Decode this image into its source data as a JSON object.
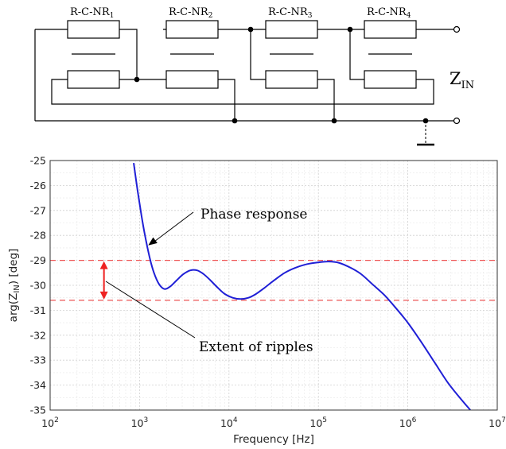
{
  "circuit": {
    "block_labels": [
      {
        "base": "R-C-NR",
        "sub": "1"
      },
      {
        "base": "R-C-NR",
        "sub": "2"
      },
      {
        "base": "R-C-NR",
        "sub": "3"
      },
      {
        "base": "R-C-NR",
        "sub": "4"
      }
    ],
    "port_label": {
      "base": "Z",
      "sub": "IN"
    }
  },
  "chart_data": {
    "type": "line",
    "xscale": "log",
    "xlim": [
      100,
      10000000
    ],
    "ylim": [
      -35,
      -25
    ],
    "xlabel": "Frequency [Hz]",
    "ylabel": {
      "base": "arg(Z",
      "sub": "IN",
      "tail": ") [deg]"
    },
    "x_ticks": [
      {
        "value": 100,
        "base": "10",
        "exp": "2"
      },
      {
        "value": 1000,
        "base": "10",
        "exp": "3"
      },
      {
        "value": 10000,
        "base": "10",
        "exp": "4"
      },
      {
        "value": 100000,
        "base": "10",
        "exp": "5"
      },
      {
        "value": 1000000,
        "base": "10",
        "exp": "6"
      },
      {
        "value": 10000000,
        "base": "10",
        "exp": "7"
      }
    ],
    "y_ticks": [
      "-25",
      "-26",
      "-27",
      "-28",
      "-29",
      "-30",
      "-31",
      "-32",
      "-33",
      "-34",
      "-35"
    ],
    "grid": true,
    "series": [
      {
        "color": "#1f1fd6",
        "x": [
          860,
          950,
          1050,
          1150,
          1300,
          1450,
          1650,
          1900,
          2200,
          2600,
          3100,
          3700,
          4400,
          5200,
          6200,
          7500,
          9000,
          11000,
          13500,
          16500,
          20000,
          25000,
          32000,
          42000,
          55000,
          75000,
          100000,
          130000,
          170000,
          230000,
          300000,
          400000,
          550000,
          750000,
          1000000,
          1400000,
          2000000,
          2800000,
          3800000,
          5000000
        ],
        "y": [
          -25.1,
          -26.2,
          -27.2,
          -28.0,
          -28.9,
          -29.5,
          -29.95,
          -30.15,
          -30.05,
          -29.8,
          -29.55,
          -29.4,
          -29.4,
          -29.55,
          -29.8,
          -30.1,
          -30.35,
          -30.5,
          -30.55,
          -30.5,
          -30.35,
          -30.1,
          -29.8,
          -29.5,
          -29.3,
          -29.15,
          -29.08,
          -29.05,
          -29.1,
          -29.3,
          -29.55,
          -29.95,
          -30.4,
          -30.95,
          -31.5,
          -32.25,
          -33.1,
          -33.9,
          -34.5,
          -35.0
        ]
      }
    ],
    "reference_lines": [
      {
        "y": -29.0,
        "color": "#ee5555"
      },
      {
        "y": -30.6,
        "color": "#ee5555"
      }
    ],
    "ripple_marker": {
      "x": 400,
      "y_top": -29.0,
      "y_bottom": -30.6,
      "color": "#ee2222"
    },
    "annotations": [
      {
        "text": "Phase response",
        "text_x": 22000,
        "text_y": -27.7,
        "point_x": 1250,
        "point_y": -28.4
      },
      {
        "text": "Extent of ripples",
        "text_x": 15000,
        "text_y": -32.3,
        "point_x": 420,
        "point_y": -30.2
      }
    ]
  }
}
